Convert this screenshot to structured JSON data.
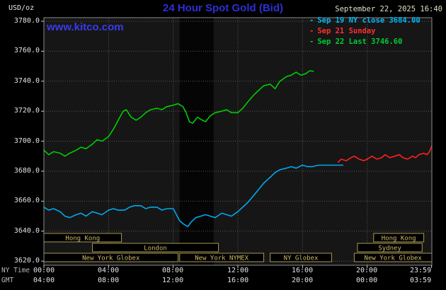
{
  "header": {
    "units": "USD/oz",
    "title": "24 Hour Spot Gold (Bid)",
    "datetime": "September 22, 2025 16:40",
    "watermark": "www.kitco.com"
  },
  "legend": [
    {
      "label": "Sep 19 NY close 3684.00",
      "color": "#00b8f5"
    },
    {
      "label": "Sep 21 Sunday",
      "color": "#ff3030"
    },
    {
      "label": "Sep 22 Last 3746.60",
      "color": "#00cc33"
    }
  ],
  "axes": {
    "ny_caption": "NY Time",
    "gmt_caption": "GMT",
    "y_ticks": [
      "3780.0",
      "3760.0",
      "3740.0",
      "3720.0",
      "3700.0",
      "3680.0",
      "3660.0",
      "3640.0",
      "3620.0"
    ],
    "x_tick_hours": [
      0,
      4,
      8,
      12,
      16,
      20,
      23.983
    ],
    "x_ny_ticks": [
      "00:00",
      "04:00",
      "08:00",
      "12:00",
      "16:00",
      "20:00",
      "23:59"
    ],
    "x_gmt_ticks": [
      "04:00",
      "08:00",
      "12:00",
      "16:00",
      "20:00",
      "00:00",
      "03:59"
    ]
  },
  "chart_data": {
    "type": "line",
    "title": "24 Hour Spot Gold (Bid)",
    "ylabel": "USD/oz",
    "xlabel": "NY Time (hours)",
    "ylim": [
      3620,
      3780
    ],
    "xlim": [
      0,
      24
    ],
    "y_step": 20,
    "x_step": 4,
    "grid": true,
    "legend_position": "top-right",
    "plot_bg": "#161616",
    "grid_color": "#565656",
    "border_color": "#8a8a8a",
    "session_border": "#a89850",
    "session_text": "#cdbb6e",
    "shaded_bands": [
      {
        "start": 8.4,
        "end": 10.5,
        "color": "#050505"
      }
    ],
    "series": [
      {
        "name": "Sep 19 NY close 3684.00",
        "color": "#00a8f0",
        "x": [
          0,
          0.3,
          0.6,
          1,
          1.3,
          1.6,
          2,
          2.3,
          2.6,
          3,
          3.3,
          3.6,
          4,
          4.3,
          4.6,
          5,
          5.3,
          5.6,
          6,
          6.3,
          6.6,
          7,
          7.3,
          7.6,
          8,
          8.2,
          8.4,
          8.6,
          8.9,
          9.1,
          9.4,
          9.7,
          10,
          10.3,
          10.6,
          11,
          11.3,
          11.6,
          12,
          12.3,
          12.6,
          13,
          13.3,
          13.6,
          14,
          14.3,
          14.6,
          15,
          15.3,
          15.6,
          16,
          16.3,
          16.6,
          17,
          17.5,
          18,
          18.5
        ],
        "values": [
          3656,
          3654,
          3655,
          3653,
          3650,
          3649,
          3651,
          3652,
          3650,
          3653,
          3652,
          3651,
          3654,
          3655,
          3654,
          3654,
          3656,
          3657,
          3657,
          3655,
          3656,
          3656,
          3654,
          3655,
          3655,
          3651,
          3647,
          3645,
          3643,
          3646,
          3649,
          3650,
          3651,
          3650,
          3649,
          3652,
          3651,
          3650,
          3653,
          3656,
          3659,
          3664,
          3668,
          3672,
          3676,
          3679,
          3681,
          3682,
          3683,
          3682,
          3684,
          3683,
          3683,
          3684,
          3684,
          3684,
          3684
        ]
      },
      {
        "name": "Sep 21 Sunday",
        "color": "#ff2020",
        "x": [
          18.2,
          18.4,
          18.7,
          19,
          19.2,
          19.5,
          19.8,
          20,
          20.3,
          20.6,
          20.9,
          21.1,
          21.4,
          21.7,
          22,
          22.2,
          22.5,
          22.8,
          23,
          23.2,
          23.5,
          23.7,
          23.85,
          24
        ],
        "values": [
          3686,
          3688,
          3687,
          3689,
          3690,
          3688,
          3687,
          3688,
          3690,
          3688,
          3689,
          3691,
          3689,
          3690,
          3691,
          3689,
          3688,
          3690,
          3689,
          3691,
          3692,
          3691,
          3693,
          3697
        ]
      },
      {
        "name": "Sep 22 Last 3746.60",
        "color": "#00cc00",
        "x": [
          0,
          0.3,
          0.6,
          1,
          1.3,
          1.6,
          2,
          2.3,
          2.6,
          3,
          3.3,
          3.6,
          4,
          4.3,
          4.6,
          4.9,
          5.1,
          5.4,
          5.7,
          6,
          6.3,
          6.6,
          7,
          7.3,
          7.6,
          8,
          8.3,
          8.6,
          8.8,
          9,
          9.2,
          9.5,
          9.8,
          10,
          10.3,
          10.6,
          11,
          11.3,
          11.6,
          12,
          12.3,
          12.6,
          13,
          13.3,
          13.6,
          14,
          14.3,
          14.6,
          15,
          15.3,
          15.6,
          15.9,
          16.2,
          16.45,
          16.67
        ],
        "values": [
          3694,
          3691,
          3693,
          3692,
          3690,
          3692,
          3694,
          3696,
          3695,
          3698,
          3701,
          3700,
          3703,
          3708,
          3714,
          3720,
          3721,
          3716,
          3714,
          3716,
          3719,
          3721,
          3722,
          3721,
          3723,
          3724,
          3725,
          3723,
          3719,
          3713,
          3712,
          3716,
          3714,
          3713,
          3717,
          3719,
          3720,
          3721,
          3719,
          3719,
          3722,
          3726,
          3731,
          3734,
          3737,
          3738,
          3735,
          3740,
          3743,
          3744,
          3746,
          3744,
          3745,
          3747,
          3746.6
        ]
      }
    ],
    "sessions": [
      [
        {
          "label": "Hong Kong",
          "start": 0,
          "end": 4.8
        },
        {
          "label": "Hong Kong",
          "start": 20.4,
          "end": 23.5
        }
      ],
      [
        {
          "label": "London",
          "start": 3.0,
          "end": 10.8
        },
        {
          "label": "Sydney",
          "start": 19.4,
          "end": 23.4
        }
      ],
      [
        {
          "label": "New York Globex",
          "start": 0,
          "end": 8.3
        },
        {
          "label": "New York NYMEX",
          "start": 8.4,
          "end": 13.6
        },
        {
          "label": "NY Globex",
          "start": 14.0,
          "end": 17.8
        },
        {
          "label": "New York Globex",
          "start": 19.2,
          "end": 24.0
        }
      ]
    ]
  }
}
